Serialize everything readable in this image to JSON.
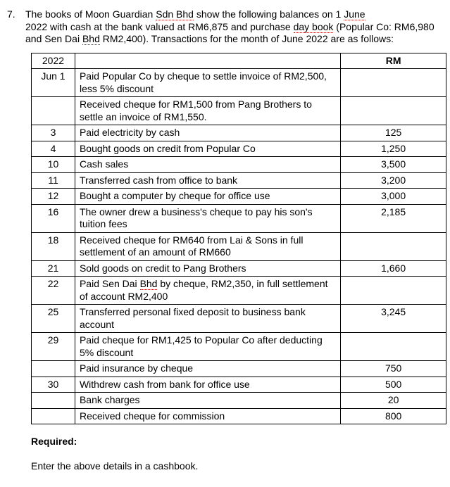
{
  "question_number": "7.",
  "intro": {
    "line1_a": "The books of Moon Guardian ",
    "line1_b": "Sdn Bhd",
    "line1_c": " show the following balances on 1 ",
    "line1_d": "June",
    "line2_a": "2022 with cash at the bank valued at RM6,875 and purchase ",
    "line2_b": "day book",
    "line2_c": " (Popular Co: RM6,980",
    "line3_a": "and Sen Dai ",
    "line3_b": "Bhd",
    "line3_c": " RM2,400). Transactions for the month of June 2022 are as follows:"
  },
  "header": {
    "year": "2022",
    "rm": "RM"
  },
  "rows": [
    {
      "date": "Jun 1",
      "desc_parts": [
        {
          "t": "Paid Popular Co by cheque to settle invoice of RM2,500, less 5% discount"
        }
      ],
      "rm": ""
    },
    {
      "date": "",
      "desc_parts": [
        {
          "t": "Received cheque for RM1,500 from Pang Brothers to settle an invoice of RM1,550."
        }
      ],
      "rm": ""
    },
    {
      "date": "3",
      "desc_parts": [
        {
          "t": "Paid electricity by cash"
        }
      ],
      "rm": "125"
    },
    {
      "date": "4",
      "desc_parts": [
        {
          "t": "Bought goods on credit from Popular Co"
        }
      ],
      "rm": "1,250"
    },
    {
      "date": "10",
      "desc_parts": [
        {
          "t": "Cash sales"
        }
      ],
      "rm": "3,500"
    },
    {
      "date": "11",
      "desc_parts": [
        {
          "t": "Transferred cash from office to bank"
        }
      ],
      "rm": "3,200"
    },
    {
      "date": "12",
      "desc_parts": [
        {
          "t": "Bought a computer by cheque for office use"
        }
      ],
      "rm": "3,000"
    },
    {
      "date": "16",
      "desc_parts": [
        {
          "t": "The owner drew a business's cheque to pay his son's tuition fees"
        }
      ],
      "rm": "2,185"
    },
    {
      "date": "18",
      "desc_parts": [
        {
          "t": "Received cheque for RM640 from Lai & Sons in full settlement of an amount of RM660"
        }
      ],
      "rm": ""
    },
    {
      "date": "21",
      "desc_parts": [
        {
          "t": "Sold goods on credit to Pang Brothers"
        }
      ],
      "rm": "1,660"
    },
    {
      "date": "22",
      "desc_parts": [
        {
          "t": "Paid Sen Dai "
        },
        {
          "t": "Bhd",
          "u": true
        },
        {
          "t": " by cheque, RM2,350, in full settlement of account RM2,400"
        }
      ],
      "rm": ""
    },
    {
      "date": "25",
      "desc_parts": [
        {
          "t": "Transferred personal fixed deposit to business bank account"
        }
      ],
      "rm": "3,245"
    },
    {
      "date": "29",
      "desc_parts": [
        {
          "t": "Paid cheque for RM1,425 to Popular Co after deducting 5% discount"
        }
      ],
      "rm": ""
    },
    {
      "date": "",
      "desc_parts": [
        {
          "t": "Paid insurance by cheque"
        }
      ],
      "rm": "750"
    },
    {
      "date": "30",
      "desc_parts": [
        {
          "t": "Withdrew cash from bank for office use"
        }
      ],
      "rm": "500"
    },
    {
      "date": "",
      "desc_parts": [
        {
          "t": "Bank charges"
        }
      ],
      "rm": "20"
    },
    {
      "date": "",
      "desc_parts": [
        {
          "t": "Received cheque for commission"
        }
      ],
      "rm": "800"
    }
  ],
  "required": {
    "label": "Required:",
    "text": "Enter the above details in a cashbook."
  }
}
